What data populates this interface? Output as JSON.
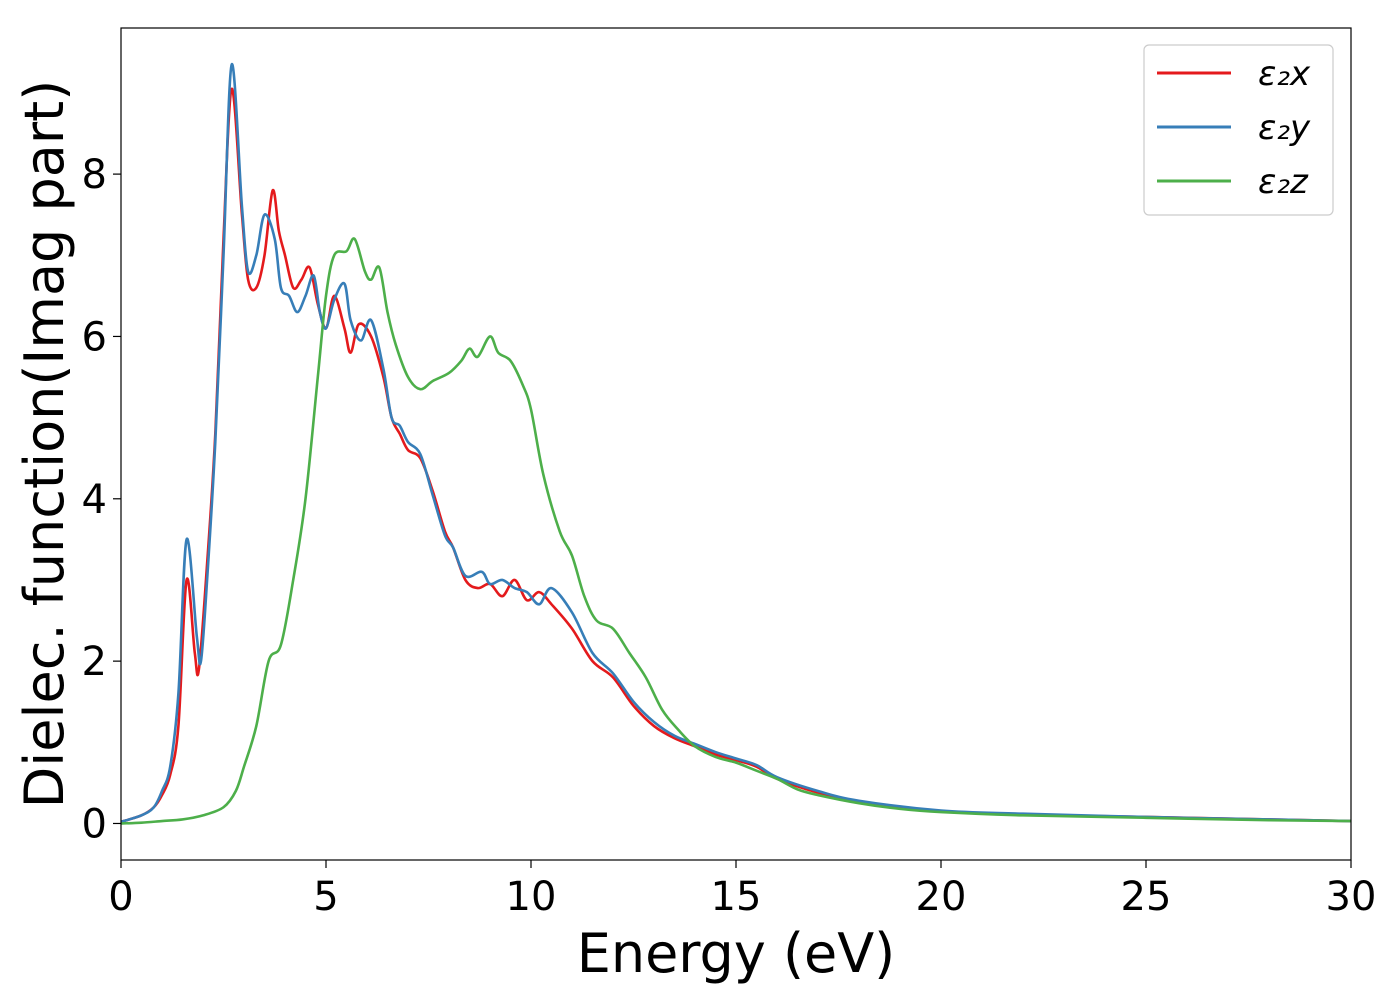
{
  "chart_data": {
    "type": "line",
    "title": "",
    "xlabel": "Energy (eV)",
    "ylabel": "Dielec. function(Imag part)",
    "xlim": [
      0,
      30
    ],
    "ylim": [
      -0.45,
      9.8
    ],
    "xticks": [
      0,
      5,
      10,
      15,
      20,
      25,
      30
    ],
    "yticks": [
      0,
      2,
      4,
      6,
      8
    ],
    "grid": false,
    "legend_position": "top-right",
    "series": [
      {
        "name": "ε₂x",
        "color": "#e41a1c",
        "x": [
          0,
          0.5,
          0.8,
          1.0,
          1.2,
          1.4,
          1.6,
          1.8,
          1.9,
          2.1,
          2.3,
          2.5,
          2.7,
          2.95,
          3.1,
          3.3,
          3.5,
          3.7,
          3.85,
          4.0,
          4.2,
          4.4,
          4.6,
          4.8,
          5.0,
          5.2,
          5.45,
          5.6,
          5.8,
          6.1,
          6.4,
          6.6,
          6.8,
          7.0,
          7.3,
          7.6,
          7.9,
          8.1,
          8.4,
          8.7,
          9.0,
          9.3,
          9.6,
          9.9,
          10.2,
          10.5,
          11.0,
          11.5,
          12.0,
          12.5,
          13.0,
          13.5,
          14.0,
          14.5,
          15.0,
          15.5,
          16.0,
          17.0,
          18.0,
          20.0,
          22.0,
          25.0,
          28.0,
          30.0
        ],
        "y": [
          0.02,
          0.1,
          0.2,
          0.35,
          0.6,
          1.2,
          3.0,
          2.1,
          1.9,
          3.2,
          4.8,
          7.2,
          9.05,
          7.5,
          6.7,
          6.6,
          7.0,
          7.8,
          7.3,
          7.0,
          6.6,
          6.7,
          6.85,
          6.4,
          6.1,
          6.5,
          6.1,
          5.8,
          6.15,
          6.0,
          5.5,
          5.0,
          4.8,
          4.6,
          4.5,
          4.1,
          3.6,
          3.4,
          3.0,
          2.9,
          2.95,
          2.8,
          3.0,
          2.75,
          2.85,
          2.7,
          2.4,
          2.0,
          1.8,
          1.45,
          1.2,
          1.05,
          0.95,
          0.85,
          0.78,
          0.7,
          0.55,
          0.38,
          0.27,
          0.15,
          0.11,
          0.08,
          0.05,
          0.03
        ]
      },
      {
        "name": "ε₂y",
        "color": "#377eb8",
        "x": [
          0,
          0.5,
          0.8,
          1.0,
          1.2,
          1.4,
          1.6,
          1.85,
          1.95,
          2.1,
          2.3,
          2.5,
          2.7,
          2.95,
          3.1,
          3.3,
          3.5,
          3.75,
          3.9,
          4.1,
          4.3,
          4.5,
          4.7,
          4.85,
          5.0,
          5.2,
          5.45,
          5.6,
          5.85,
          6.1,
          6.4,
          6.6,
          6.8,
          7.0,
          7.3,
          7.6,
          7.9,
          8.1,
          8.4,
          8.8,
          9.0,
          9.3,
          9.6,
          9.9,
          10.2,
          10.5,
          11.0,
          11.5,
          12.0,
          12.5,
          13.0,
          13.5,
          14.0,
          14.5,
          15.0,
          15.5,
          16.0,
          17.0,
          18.0,
          20.0,
          22.0,
          25.0,
          28.0,
          30.0
        ],
        "y": [
          0.02,
          0.1,
          0.2,
          0.4,
          0.7,
          1.6,
          3.5,
          2.3,
          2.0,
          3.0,
          4.7,
          7.0,
          9.35,
          7.6,
          6.8,
          7.0,
          7.5,
          7.2,
          6.6,
          6.5,
          6.3,
          6.5,
          6.75,
          6.3,
          6.1,
          6.45,
          6.65,
          6.2,
          5.95,
          6.2,
          5.6,
          5.0,
          4.9,
          4.7,
          4.55,
          4.05,
          3.55,
          3.4,
          3.05,
          3.1,
          2.95,
          3.0,
          2.9,
          2.85,
          2.7,
          2.9,
          2.6,
          2.1,
          1.85,
          1.5,
          1.25,
          1.08,
          0.98,
          0.88,
          0.8,
          0.72,
          0.57,
          0.4,
          0.28,
          0.16,
          0.12,
          0.08,
          0.05,
          0.03
        ]
      },
      {
        "name": "ε₂z",
        "color": "#4daf4a",
        "x": [
          0,
          0.5,
          1.0,
          1.5,
          2.0,
          2.5,
          2.8,
          3.0,
          3.3,
          3.6,
          3.9,
          4.2,
          4.5,
          4.8,
          5.0,
          5.2,
          5.5,
          5.7,
          5.95,
          6.1,
          6.3,
          6.5,
          6.7,
          7.0,
          7.3,
          7.6,
          8.0,
          8.3,
          8.5,
          8.7,
          9.0,
          9.2,
          9.5,
          9.8,
          10.0,
          10.3,
          10.7,
          11.0,
          11.3,
          11.6,
          12.0,
          12.4,
          12.8,
          13.2,
          13.6,
          14.0,
          14.5,
          15.0,
          15.5,
          16.0,
          16.5,
          17.0,
          18.0,
          19.0,
          20.0,
          22.0,
          25.0,
          28.0,
          30.0
        ],
        "y": [
          0.0,
          0.01,
          0.03,
          0.05,
          0.1,
          0.2,
          0.4,
          0.7,
          1.2,
          2.0,
          2.2,
          3.0,
          4.0,
          5.5,
          6.5,
          7.0,
          7.05,
          7.2,
          6.8,
          6.7,
          6.85,
          6.3,
          5.9,
          5.5,
          5.35,
          5.45,
          5.55,
          5.7,
          5.85,
          5.75,
          6.0,
          5.8,
          5.7,
          5.4,
          5.1,
          4.3,
          3.6,
          3.3,
          2.8,
          2.5,
          2.4,
          2.1,
          1.8,
          1.4,
          1.15,
          0.95,
          0.82,
          0.75,
          0.65,
          0.55,
          0.42,
          0.35,
          0.25,
          0.18,
          0.14,
          0.1,
          0.07,
          0.04,
          0.03
        ]
      }
    ]
  }
}
